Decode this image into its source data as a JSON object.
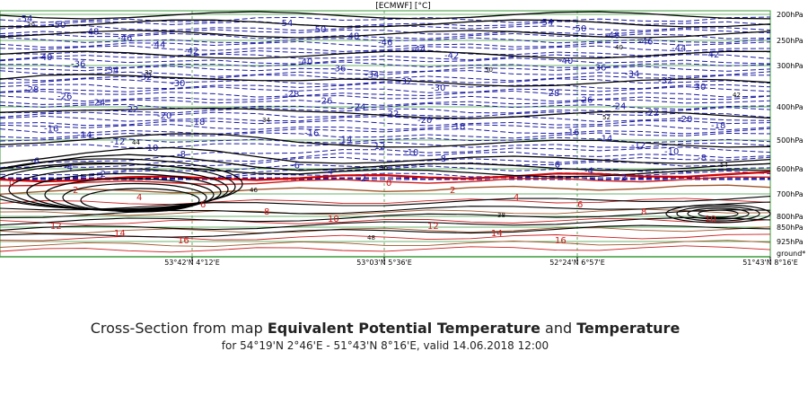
{
  "header": {
    "source_units": "[ECMWF] [°C]"
  },
  "title": {
    "prefix": "Cross-Section from map ",
    "param1": "Equivalent Potential Temperature",
    "joiner": " and ",
    "param2": "Temperature",
    "subtitle": "for 54°19'N 2°46'E - 51°43'N 8°16'E, valid 14.06.2018 12:00"
  },
  "chart_data": {
    "type": "cross-section",
    "x_ticks": [
      "53°42'N 4°12'E",
      "53°03'N 5°36'E",
      "52°24'N 6°57'E",
      "51°43'N 8°16'E"
    ],
    "pressure_levels": [
      "200hPa",
      "250hPa",
      "300hPa",
      "400hPa",
      "500hPa",
      "600hPa",
      "700hPa",
      "800hPa",
      "850hPa",
      "925hPa",
      "ground*"
    ],
    "temperature_labels_blue": [
      "-54",
      "-50",
      "-48",
      "-46",
      "-44",
      "-42",
      "-40",
      "-36",
      "-34",
      "-32",
      "-30",
      "-28",
      "-26",
      "-24",
      "-22",
      "-20",
      "-18",
      "-16",
      "-14",
      "-12",
      "-10",
      "-8",
      "-6",
      "-4",
      "-2"
    ],
    "temperature_labels_red": [
      "0",
      "2",
      "4",
      "6",
      "8",
      "10",
      "12",
      "14",
      "16"
    ],
    "theta_e_labels": [
      "30",
      "32",
      "34",
      "36",
      "38",
      "40",
      "42",
      "44",
      "46",
      "48",
      "50",
      "52",
      "54"
    ],
    "colors": {
      "cold_isotherm": "#1a1aa0",
      "warm_isotherm": "#cc1b1b",
      "theta_e": "#000000",
      "grid": "#3a9a3a"
    }
  }
}
